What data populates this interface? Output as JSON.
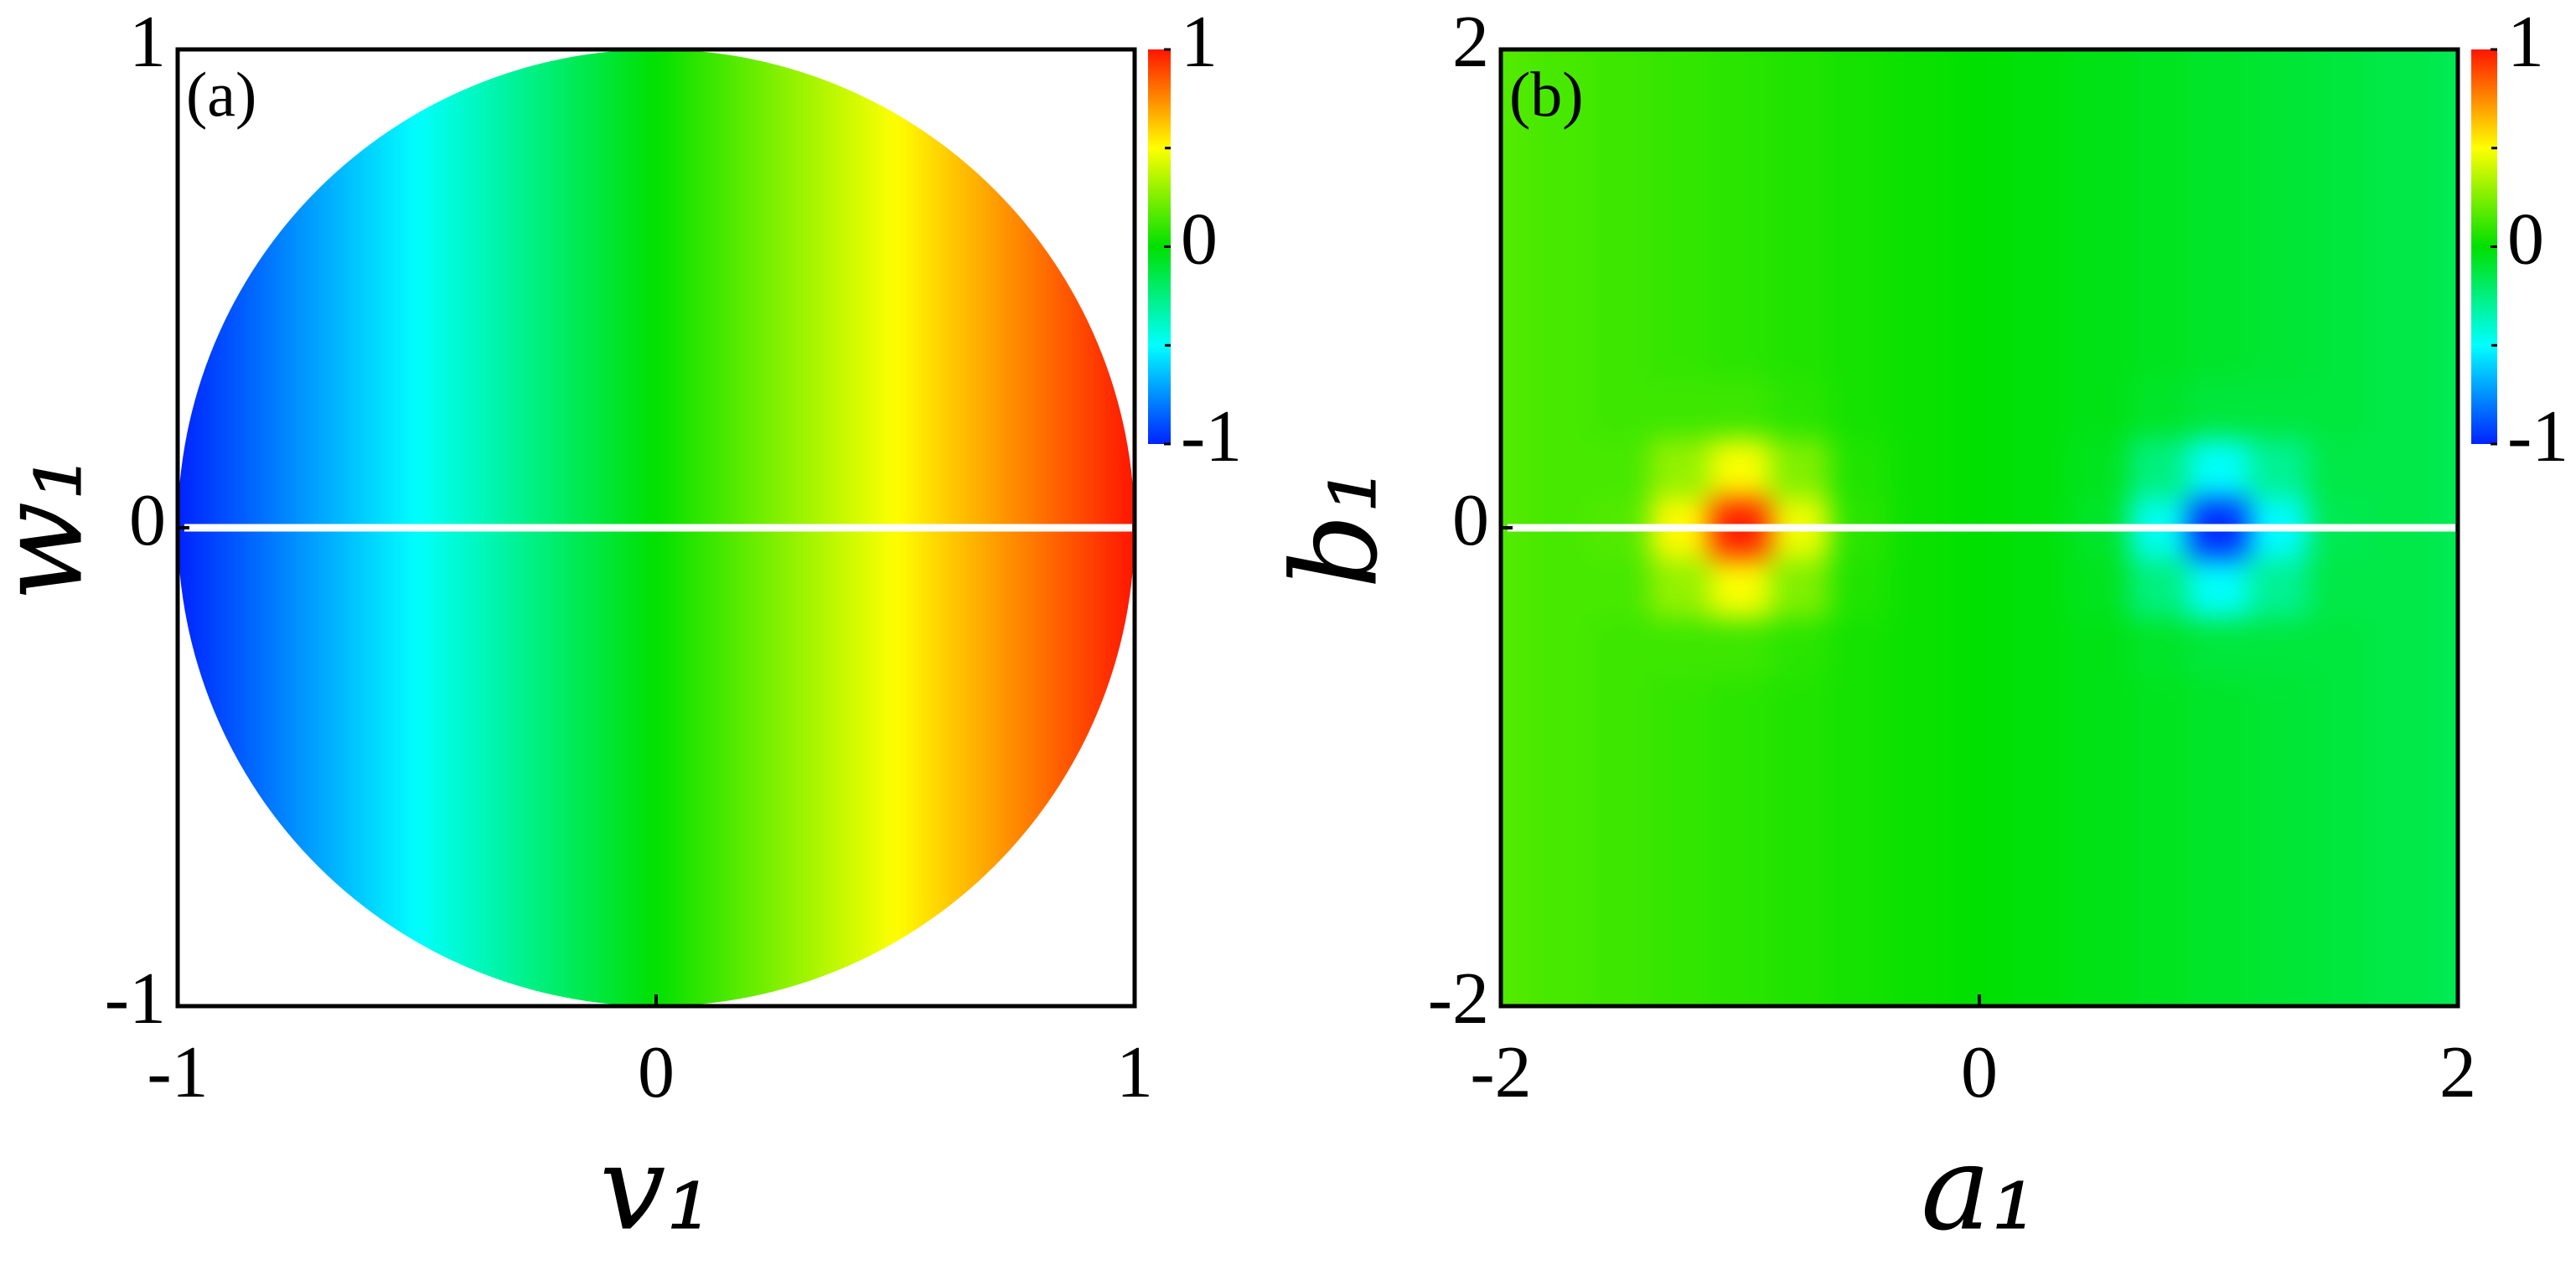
{
  "chart_data": [
    {
      "type": "heatmap",
      "panel_label": "(a)",
      "xlabel": "v₁",
      "ylabel": "w₁",
      "xlim": [
        -1,
        1
      ],
      "ylim": [
        -1,
        1
      ],
      "xticks": [
        -1,
        0,
        1
      ],
      "yticks": [
        -1,
        0,
        1
      ],
      "domain": "disk",
      "hline": 0,
      "x": [
        -1,
        -0.95,
        -0.9,
        -0.85,
        -0.8,
        -0.75,
        -0.7,
        -0.65,
        -0.6,
        -0.55,
        -0.5,
        -0.45,
        -0.4,
        -0.35,
        -0.3,
        -0.25,
        -0.2,
        -0.15,
        -0.1,
        -0.05,
        0,
        0.05,
        0.1,
        0.15,
        0.2,
        0.25,
        0.3,
        0.35,
        0.4,
        0.45,
        0.5,
        0.55,
        0.6,
        0.65,
        0.7,
        0.75,
        0.8,
        0.85,
        0.9,
        0.95,
        1
      ],
      "values": [
        -1,
        -0.95,
        -0.9,
        -0.85,
        -0.8,
        -0.75,
        -0.7,
        -0.65,
        -0.6,
        -0.55,
        -0.5,
        -0.45,
        -0.4,
        -0.35,
        -0.3,
        -0.25,
        -0.2,
        -0.15,
        -0.1,
        -0.05,
        0,
        0.05,
        0.1,
        0.15,
        0.2,
        0.25,
        0.3,
        0.35,
        0.4,
        0.45,
        0.5,
        0.55,
        0.6,
        0.65,
        0.7,
        0.75,
        0.8,
        0.85,
        0.9,
        0.95,
        1
      ],
      "colorbar": {
        "lim": [
          -1,
          1
        ],
        "ticks": [
          -1,
          0,
          1
        ],
        "minor_ticks": [
          -0.5,
          0.5
        ],
        "colors": [
          "#0022ff",
          "#00ffff",
          "#00e000",
          "#ffff00",
          "#ff1500"
        ]
      }
    },
    {
      "type": "heatmap",
      "panel_label": "(b)",
      "xlabel": "a₁",
      "ylabel": "b₁",
      "xlim": [
        -2,
        2
      ],
      "ylim": [
        -2,
        2
      ],
      "xticks": [
        -2,
        0,
        2
      ],
      "yticks": [
        -2,
        0,
        2
      ],
      "hline": 0,
      "x": [
        -2,
        -1.75,
        -1.5,
        -1.25,
        -1,
        -0.75,
        -0.5,
        -0.25,
        0,
        0.25,
        0.5,
        0.75,
        1,
        1.25,
        1.5,
        1.75,
        2
      ],
      "y": [
        -2,
        -1.75,
        -1.5,
        -1.25,
        -1,
        -0.75,
        -0.5,
        -0.25,
        0,
        0.25,
        0.5,
        0.75,
        1,
        1.25,
        1.5,
        1.75,
        2
      ],
      "values": [
        [
          0.16,
          0.14,
          0.12,
          0.1,
          0.08,
          0.06,
          0.04,
          0.02,
          0,
          -0.02,
          -0.04,
          -0.06,
          -0.08,
          -0.1,
          -0.12,
          -0.14,
          -0.16
        ],
        [
          0.16,
          0.14,
          0.12,
          0.1,
          0.08,
          0.06,
          0.04,
          0.02,
          0,
          -0.02,
          -0.04,
          -0.06,
          -0.08,
          -0.1,
          -0.12,
          -0.14,
          -0.16
        ],
        [
          0.16,
          0.14,
          0.12,
          0.1,
          0.08,
          0.06,
          0.04,
          0.02,
          0,
          -0.02,
          -0.04,
          -0.06,
          -0.08,
          -0.1,
          -0.12,
          -0.14,
          -0.16
        ],
        [
          0.16,
          0.14,
          0.12,
          0.1,
          0.08,
          0.06,
          0.04,
          0.02,
          0,
          -0.02,
          -0.04,
          -0.06,
          -0.08,
          -0.1,
          -0.12,
          -0.14,
          -0.16
        ],
        [
          0.16,
          0.14,
          0.12,
          0.1,
          0.08,
          0.06,
          0.04,
          0.02,
          0,
          -0.02,
          -0.04,
          -0.06,
          -0.08,
          -0.1,
          -0.12,
          -0.14,
          -0.16
        ],
        [
          0.16,
          0.14,
          0.12,
          0.1,
          0.08,
          0.06,
          0.04,
          0.02,
          0,
          -0.02,
          -0.04,
          -0.06,
          -0.08,
          -0.1,
          -0.12,
          -0.14,
          -0.16
        ],
        [
          0.16,
          0.14,
          0.12,
          0.12,
          0.12,
          0.08,
          0.04,
          0.02,
          0,
          -0.02,
          -0.04,
          -0.08,
          -0.12,
          -0.12,
          -0.12,
          -0.14,
          -0.16
        ],
        [
          0.16,
          0.14,
          0.14,
          0.29,
          0.49,
          0.25,
          0.06,
          0.02,
          0,
          -0.02,
          -0.06,
          -0.25,
          -0.49,
          -0.29,
          -0.14,
          -0.14,
          -0.16
        ],
        [
          0.16,
          0.14,
          0.16,
          0.51,
          0.98,
          0.47,
          0.08,
          0.02,
          0,
          -0.02,
          -0.08,
          -0.47,
          -0.98,
          -0.51,
          -0.16,
          -0.14,
          -0.16
        ],
        [
          0.16,
          0.14,
          0.14,
          0.29,
          0.49,
          0.25,
          0.06,
          0.02,
          0,
          -0.02,
          -0.06,
          -0.25,
          -0.49,
          -0.29,
          -0.14,
          -0.14,
          -0.16
        ],
        [
          0.16,
          0.14,
          0.12,
          0.12,
          0.12,
          0.08,
          0.04,
          0.02,
          0,
          -0.02,
          -0.04,
          -0.08,
          -0.12,
          -0.12,
          -0.12,
          -0.14,
          -0.16
        ],
        [
          0.16,
          0.14,
          0.12,
          0.1,
          0.08,
          0.06,
          0.04,
          0.02,
          0,
          -0.02,
          -0.04,
          -0.06,
          -0.08,
          -0.1,
          -0.12,
          -0.14,
          -0.16
        ],
        [
          0.16,
          0.14,
          0.12,
          0.1,
          0.08,
          0.06,
          0.04,
          0.02,
          0,
          -0.02,
          -0.04,
          -0.06,
          -0.08,
          -0.1,
          -0.12,
          -0.14,
          -0.16
        ],
        [
          0.16,
          0.14,
          0.12,
          0.1,
          0.08,
          0.06,
          0.04,
          0.02,
          0,
          -0.02,
          -0.04,
          -0.06,
          -0.08,
          -0.1,
          -0.12,
          -0.14,
          -0.16
        ],
        [
          0.16,
          0.14,
          0.12,
          0.1,
          0.08,
          0.06,
          0.04,
          0.02,
          0,
          -0.02,
          -0.04,
          -0.06,
          -0.08,
          -0.1,
          -0.12,
          -0.14,
          -0.16
        ],
        [
          0.16,
          0.14,
          0.12,
          0.1,
          0.08,
          0.06,
          0.04,
          0.02,
          0,
          -0.02,
          -0.04,
          -0.06,
          -0.08,
          -0.1,
          -0.12,
          -0.14,
          -0.16
        ],
        [
          0.16,
          0.14,
          0.12,
          0.1,
          0.08,
          0.06,
          0.04,
          0.02,
          0,
          -0.02,
          -0.04,
          -0.06,
          -0.08,
          -0.1,
          -0.12,
          -0.14,
          -0.16
        ]
      ],
      "colorbar": {
        "lim": [
          -1,
          1
        ],
        "ticks": [
          -1,
          0,
          1
        ],
        "minor_ticks": [
          -0.5,
          0.5
        ],
        "colors": [
          "#0022ff",
          "#00ffff",
          "#00e000",
          "#ffff00",
          "#ff1500"
        ]
      }
    }
  ]
}
